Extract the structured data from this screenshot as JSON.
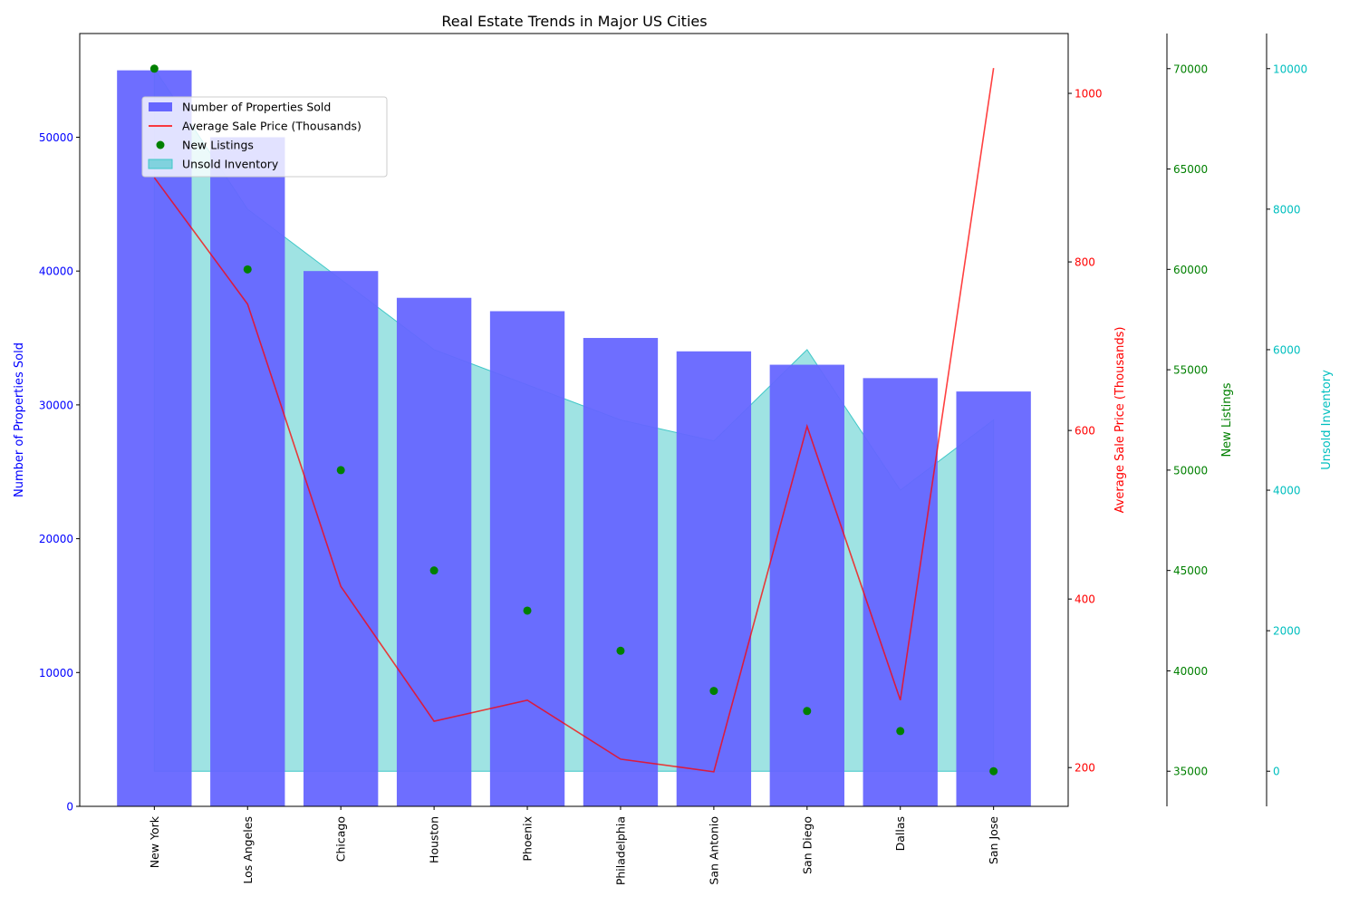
{
  "chart_data": {
    "type": "bar",
    "title": "Real Estate Trends in Major US Cities",
    "categories": [
      "New York",
      "Los Angeles",
      "Chicago",
      "Houston",
      "Phoenix",
      "Philadelphia",
      "San Antonio",
      "San Diego",
      "Dallas",
      "San Jose"
    ],
    "series": [
      {
        "name": "Number of Properties Sold",
        "type": "bar",
        "axis": "Number of Properties Sold",
        "color": "#6666ff",
        "values": [
          55000,
          50000,
          40000,
          38000,
          37000,
          35000,
          34000,
          33000,
          32000,
          31000
        ]
      },
      {
        "name": "Average Sale Price (Thousands)",
        "type": "line",
        "axis": "Average Sale Price (Thousands)",
        "color": "#ff0000",
        "values": [
          900,
          750,
          415,
          255,
          280,
          210,
          195,
          605,
          280,
          1030
        ]
      },
      {
        "name": "New Listings",
        "type": "scatter",
        "axis": "New Listings",
        "color": "#008000",
        "values": [
          70000,
          60000,
          50000,
          45000,
          43000,
          41000,
          39000,
          38000,
          37000,
          35000
        ]
      },
      {
        "name": "Unsold Inventory",
        "type": "area",
        "axis": "Unsold Inventory",
        "color": "#40c8c8",
        "values": [
          10000,
          8000,
          7000,
          6000,
          5500,
          5000,
          4700,
          6000,
          4000,
          5000
        ]
      }
    ],
    "axes": {
      "left": {
        "label": "Number of Properties Sold",
        "color": "#0000ff",
        "range": [
          0,
          57750
        ],
        "ticks": [
          0,
          10000,
          20000,
          30000,
          40000,
          50000
        ],
        "tick_labels": [
          "0",
          "10000",
          "20000",
          "30000",
          "40000",
          "50000"
        ]
      },
      "right1": {
        "label": "Average Sale Price (Thousands)",
        "color": "#ff0000",
        "range": [
          154,
          1071
        ],
        "ticks": [
          200,
          400,
          600,
          800,
          1000
        ],
        "tick_labels": [
          "200",
          "400",
          "600",
          "800",
          "1000"
        ]
      },
      "right2": {
        "label": "New Listings",
        "color": "#008000",
        "range": [
          33250,
          71750
        ],
        "ticks": [
          35000,
          40000,
          45000,
          50000,
          55000,
          60000,
          65000,
          70000
        ],
        "tick_labels": [
          "35000",
          "40000",
          "45000",
          "50000",
          "55000",
          "60000",
          "65000",
          "70000"
        ]
      },
      "right3": {
        "label": "Unsold Inventory",
        "color": "#00bfbf",
        "range": [
          -500,
          10500
        ],
        "ticks": [
          0,
          2000,
          4000,
          6000,
          8000,
          10000
        ],
        "tick_labels": [
          "0",
          "2000",
          "4000",
          "6000",
          "8000",
          "10000"
        ]
      }
    },
    "legend": {
      "position": "upper-left",
      "entries": [
        "Number of Properties Sold",
        "Average Sale Price (Thousands)",
        "New Listings",
        "Unsold Inventory"
      ]
    },
    "grid": false
  }
}
